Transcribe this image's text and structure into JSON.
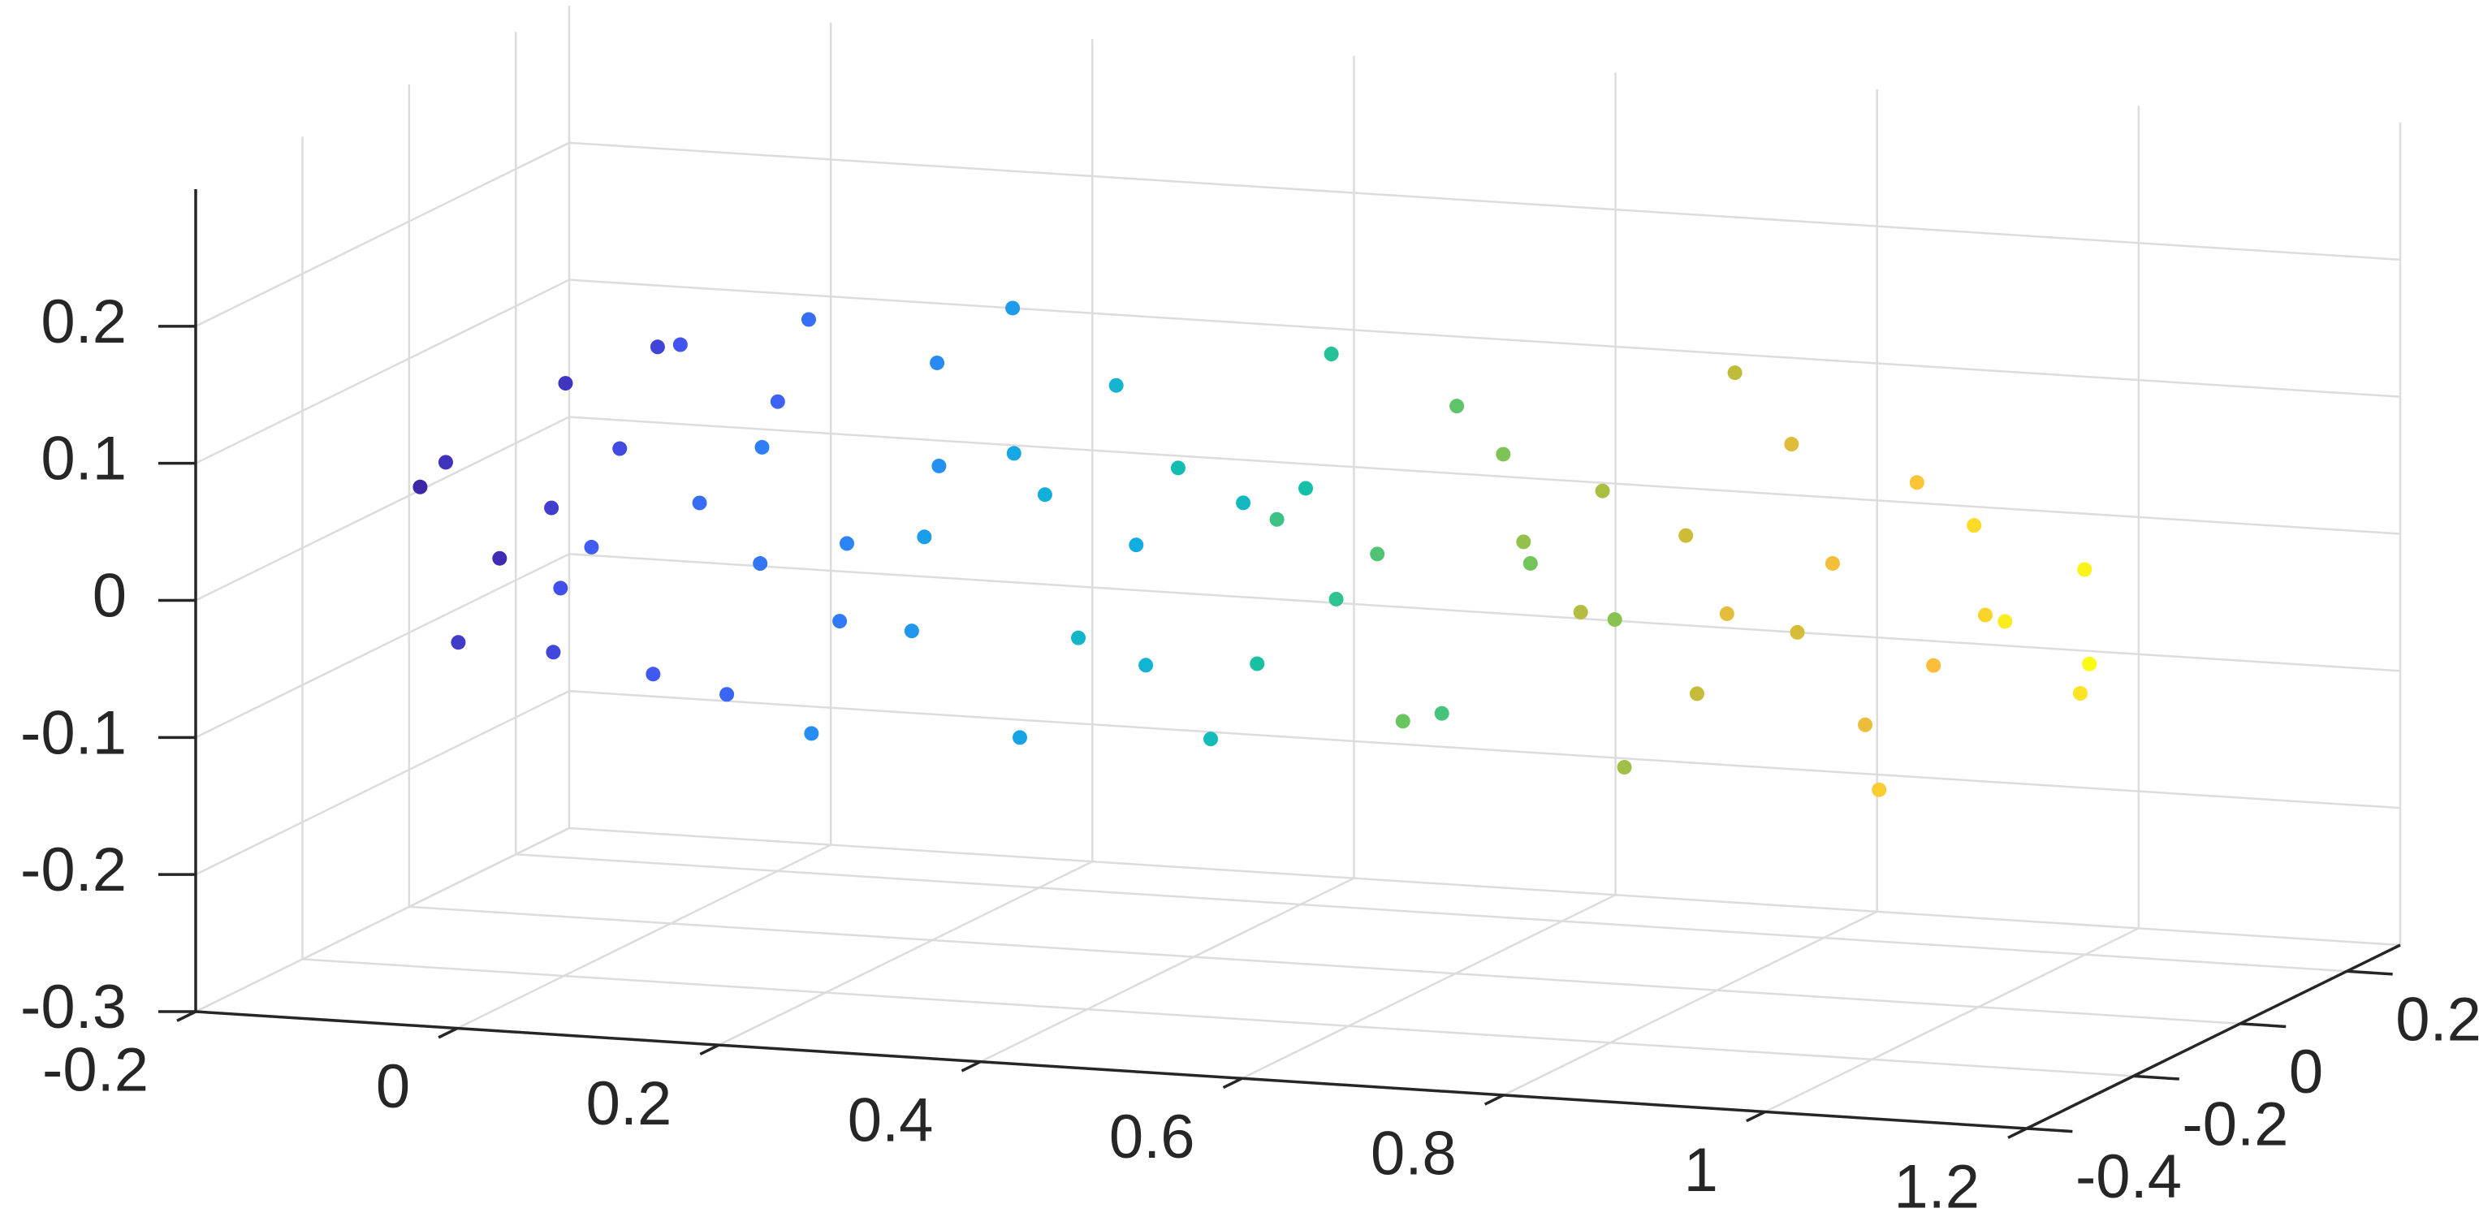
{
  "chart_data": {
    "type": "scatter3d",
    "x": [
      -0.11,
      -0.09,
      -0.07,
      -0.06,
      -0.04,
      -0.03,
      -0.01,
      0.0,
      0.01,
      0.03,
      0.04,
      0.06,
      0.07,
      0.09,
      0.1,
      0.12,
      0.13,
      0.15,
      0.17,
      0.18,
      0.2,
      0.22,
      0.23,
      0.25,
      0.27,
      0.29,
      0.3,
      0.32,
      0.34,
      0.36,
      0.38,
      0.4,
      0.41,
      0.43,
      0.45,
      0.47,
      0.49,
      0.51,
      0.53,
      0.55,
      0.57,
      0.59,
      0.61,
      0.63,
      0.65,
      0.67,
      0.69,
      0.71,
      0.73,
      0.75,
      0.77,
      0.79,
      0.81,
      0.83,
      0.85,
      0.87,
      0.89,
      0.91,
      0.93,
      0.95,
      0.97,
      0.99,
      1.01,
      1.03,
      1.05,
      1.07,
      1.09,
      1.11,
      1.13,
      1.15
    ],
    "y": [
      -0.2,
      -0.1,
      -0.25,
      -0.05,
      -0.3,
      -0.15,
      0.0,
      -0.22,
      -0.12,
      -0.28,
      -0.08,
      -0.18,
      -0.32,
      -0.02,
      -0.14,
      -0.24,
      -0.06,
      -0.2,
      -0.1,
      -0.27,
      -0.16,
      -0.04,
      -0.3,
      -0.11,
      -0.21,
      -0.07,
      -0.26,
      -0.13,
      -0.19,
      -0.01,
      -0.23,
      -0.09,
      -0.17,
      -0.29,
      -0.03,
      -0.14,
      -0.25,
      -0.06,
      -0.2,
      -0.11,
      -0.15,
      -0.31,
      -0.05,
      -0.22,
      -0.12,
      -0.27,
      -0.08,
      -0.18,
      -0.02,
      -0.24,
      -0.1,
      -0.19,
      -0.28,
      -0.04,
      -0.16,
      -0.23,
      -0.07,
      -0.13,
      -0.3,
      -0.09,
      -0.2,
      -0.06,
      -0.14,
      -0.26,
      -0.11,
      -0.18,
      -0.03,
      -0.22,
      -0.12,
      -0.16
    ],
    "z": [
      0.05,
      -0.02,
      0.08,
      0.1,
      -0.04,
      0.03,
      0.12,
      -0.06,
      0.07,
      0.0,
      0.14,
      -0.08,
      0.04,
      0.09,
      -0.1,
      0.06,
      0.16,
      0.01,
      -0.05,
      0.11,
      0.02,
      0.13,
      -0.09,
      0.07,
      -0.03,
      0.18,
      0.05,
      -0.12,
      0.1,
      0.0,
      0.08,
      -0.07,
      0.15,
      -0.01,
      0.04,
      -0.11,
      0.11,
      0.06,
      -0.04,
      0.17,
      0.0,
      0.09,
      -0.1,
      0.05,
      0.14,
      -0.06,
      0.02,
      0.12,
      -0.03,
      0.07,
      -0.12,
      0.1,
      0.03,
      0.16,
      -0.05,
      0.08,
      -0.02,
      0.13,
      0.04,
      -0.08,
      0.06,
      -0.04,
      0.11,
      -0.09,
      0.01,
      0.09,
      -0.06,
      0.03,
      0.05,
      -0.01
    ],
    "xlim": [
      -0.2,
      1.2
    ],
    "ylim": [
      -0.4,
      0.3
    ],
    "zlim": [
      -0.3,
      0.3
    ],
    "xticks": [
      -0.2,
      0,
      0.2,
      0.4,
      0.6,
      0.8,
      1,
      1.2
    ],
    "yticks": [
      -0.4,
      -0.2,
      0,
      0.2
    ],
    "zticks": [
      -0.3,
      -0.2,
      -0.1,
      0,
      0.1,
      0.2
    ],
    "grid": true,
    "clim": [
      -0.11,
      1.15
    ],
    "colormap": [
      "#3e26a8",
      "#4355f3",
      "#2b86f6",
      "#11aee1",
      "#14c1a6",
      "#6cc55d",
      "#c1bc39",
      "#fbbe3a",
      "#f9fb15"
    ]
  }
}
